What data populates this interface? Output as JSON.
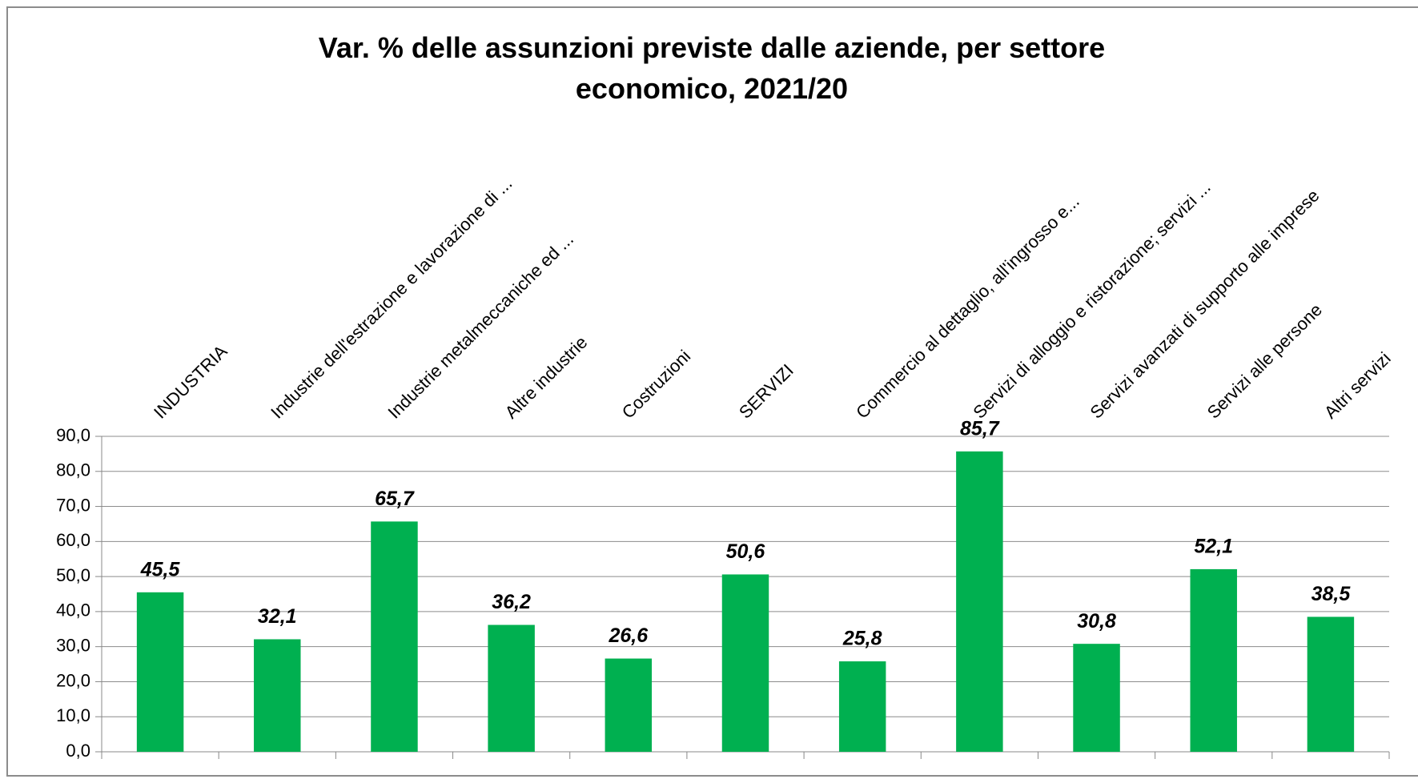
{
  "chart_data": {
    "type": "bar",
    "title": "Var. % delle assunzioni previste dalle aziende, per settore economico, 2021/20",
    "categories": [
      "INDUSTRIA",
      "Industrie dell'estrazione e lavorazione di ...",
      "Industrie metalmeccaniche ed ...",
      "Altre industrie",
      "Costruzioni",
      "SERVIZI",
      "Commercio al dettaglio, all'ingrosso e...",
      "Servizi di alloggio e ristorazione; servizi ...",
      "Servizi avanzati di supporto alle imprese",
      "Servizi alle persone",
      "Altri servizi"
    ],
    "values": [
      45.5,
      32.1,
      65.7,
      36.2,
      26.6,
      50.6,
      25.8,
      85.7,
      30.8,
      52.1,
      38.5
    ],
    "value_labels": [
      "45,5",
      "32,1",
      "65,7",
      "36,2",
      "26,6",
      "50,6",
      "25,8",
      "85,7",
      "30,8",
      "52,1",
      "38,5"
    ],
    "color": "#00b050",
    "ylim": [
      0,
      90
    ],
    "yticks": [
      {
        "value": 0,
        "label": "0,0"
      },
      {
        "value": 10,
        "label": "10,0"
      },
      {
        "value": 20,
        "label": "20,0"
      },
      {
        "value": 30,
        "label": "30,0"
      },
      {
        "value": 40,
        "label": "40,0"
      },
      {
        "value": 50,
        "label": "50,0"
      },
      {
        "value": 60,
        "label": "60,0"
      },
      {
        "value": 70,
        "label": "70,0"
      },
      {
        "value": 80,
        "label": "80,0"
      },
      {
        "value": 90,
        "label": "90,0"
      }
    ],
    "grid": true
  }
}
